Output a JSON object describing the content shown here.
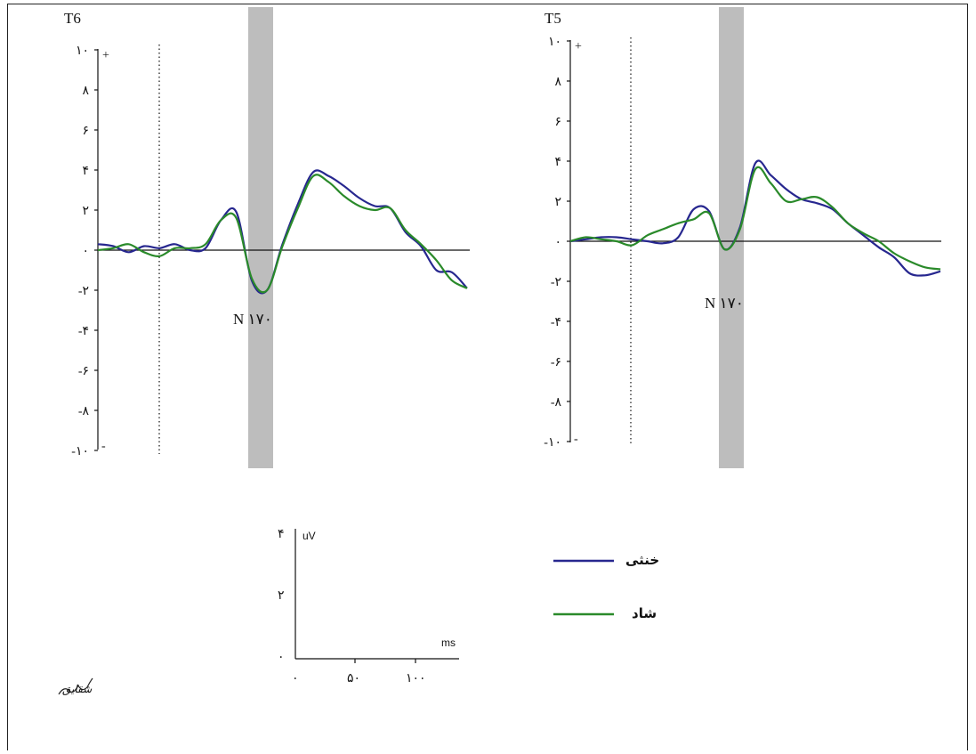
{
  "colors": {
    "blue": "#27278f",
    "green": "#2a8a2a",
    "band": "#bdbdbd"
  },
  "legend": [
    {
      "name": "خنثی",
      "color": "#27278f"
    },
    {
      "name": "شاد",
      "color": "#2a8a2a"
    }
  ],
  "scale_bar": {
    "y_unit": "uV",
    "x_unit": "ms",
    "y_ticks": [
      "۴",
      "۲",
      "۰"
    ],
    "x_ticks": [
      "۰",
      "۵۰",
      "۱۰۰"
    ]
  },
  "signature_text": "شقایق",
  "chart_data": [
    {
      "type": "line",
      "title": "T6",
      "peak_label": "N ۱۷۰",
      "ylim": [
        -10,
        10
      ],
      "y_ticks": [
        10,
        8,
        6,
        4,
        2,
        0,
        -2,
        -4,
        -6,
        -8,
        -10
      ],
      "y_tick_labels": [
        "۱۰",
        "۸",
        "۶",
        "۴",
        "۲",
        "۰",
        "-۲",
        "-۴",
        "-۶",
        "-۸",
        "-۱۰"
      ],
      "plus_sign": "+",
      "minus_sign": "-",
      "x": [
        0,
        5,
        10,
        15,
        20,
        25,
        30,
        35,
        40,
        45,
        50,
        55,
        60,
        65,
        70,
        75,
        80,
        85,
        90,
        95,
        100,
        105,
        110,
        115,
        120
      ],
      "series": [
        {
          "name": "خنثی",
          "values": [
            0.3,
            0.2,
            -0.1,
            0.2,
            0.1,
            0.3,
            0.0,
            0.1,
            1.5,
            1.9,
            -1.5,
            -2.0,
            0.3,
            2.3,
            3.9,
            3.7,
            3.2,
            2.6,
            2.2,
            2.1,
            0.9,
            0.2,
            -1.0,
            -1.1,
            -1.9
          ]
        },
        {
          "name": "شاد",
          "values": [
            0.0,
            0.1,
            0.3,
            -0.1,
            -0.3,
            0.1,
            0.1,
            0.3,
            1.5,
            1.6,
            -1.4,
            -2.0,
            0.2,
            2.1,
            3.7,
            3.4,
            2.7,
            2.2,
            2.0,
            2.1,
            1.0,
            0.3,
            -0.5,
            -1.5,
            -1.9
          ]
        }
      ]
    },
    {
      "type": "line",
      "title": "T5",
      "peak_label": "N ۱۷۰",
      "ylim": [
        -10,
        10
      ],
      "y_ticks": [
        10,
        8,
        6,
        4,
        2,
        0,
        -2,
        -4,
        -6,
        -8,
        -10
      ],
      "y_tick_labels": [
        "۱۰",
        "۸",
        "۶",
        "۴",
        "۲",
        "۰",
        "-۲",
        "-۴",
        "-۶",
        "-۸",
        "-۱۰"
      ],
      "plus_sign": "+",
      "minus_sign": "-",
      "x": [
        0,
        5,
        10,
        15,
        20,
        25,
        30,
        35,
        40,
        45,
        50,
        55,
        60,
        65,
        70,
        75,
        80,
        85,
        90,
        95,
        100,
        105,
        110,
        115,
        120
      ],
      "series": [
        {
          "name": "خنثی",
          "values": [
            0.0,
            0.1,
            0.2,
            0.2,
            0.1,
            0.0,
            -0.1,
            0.2,
            1.6,
            1.5,
            -0.4,
            0.7,
            3.9,
            3.3,
            2.6,
            2.1,
            1.9,
            1.6,
            0.9,
            0.3,
            -0.3,
            -0.8,
            -1.6,
            -1.7,
            -1.5
          ]
        },
        {
          "name": "شاد",
          "values": [
            0.0,
            0.2,
            0.1,
            0.0,
            -0.2,
            0.3,
            0.6,
            0.9,
            1.1,
            1.4,
            -0.4,
            0.6,
            3.6,
            2.9,
            2.0,
            2.1,
            2.2,
            1.7,
            0.9,
            0.4,
            0.0,
            -0.6,
            -1.0,
            -1.3,
            -1.4
          ]
        }
      ]
    }
  ]
}
